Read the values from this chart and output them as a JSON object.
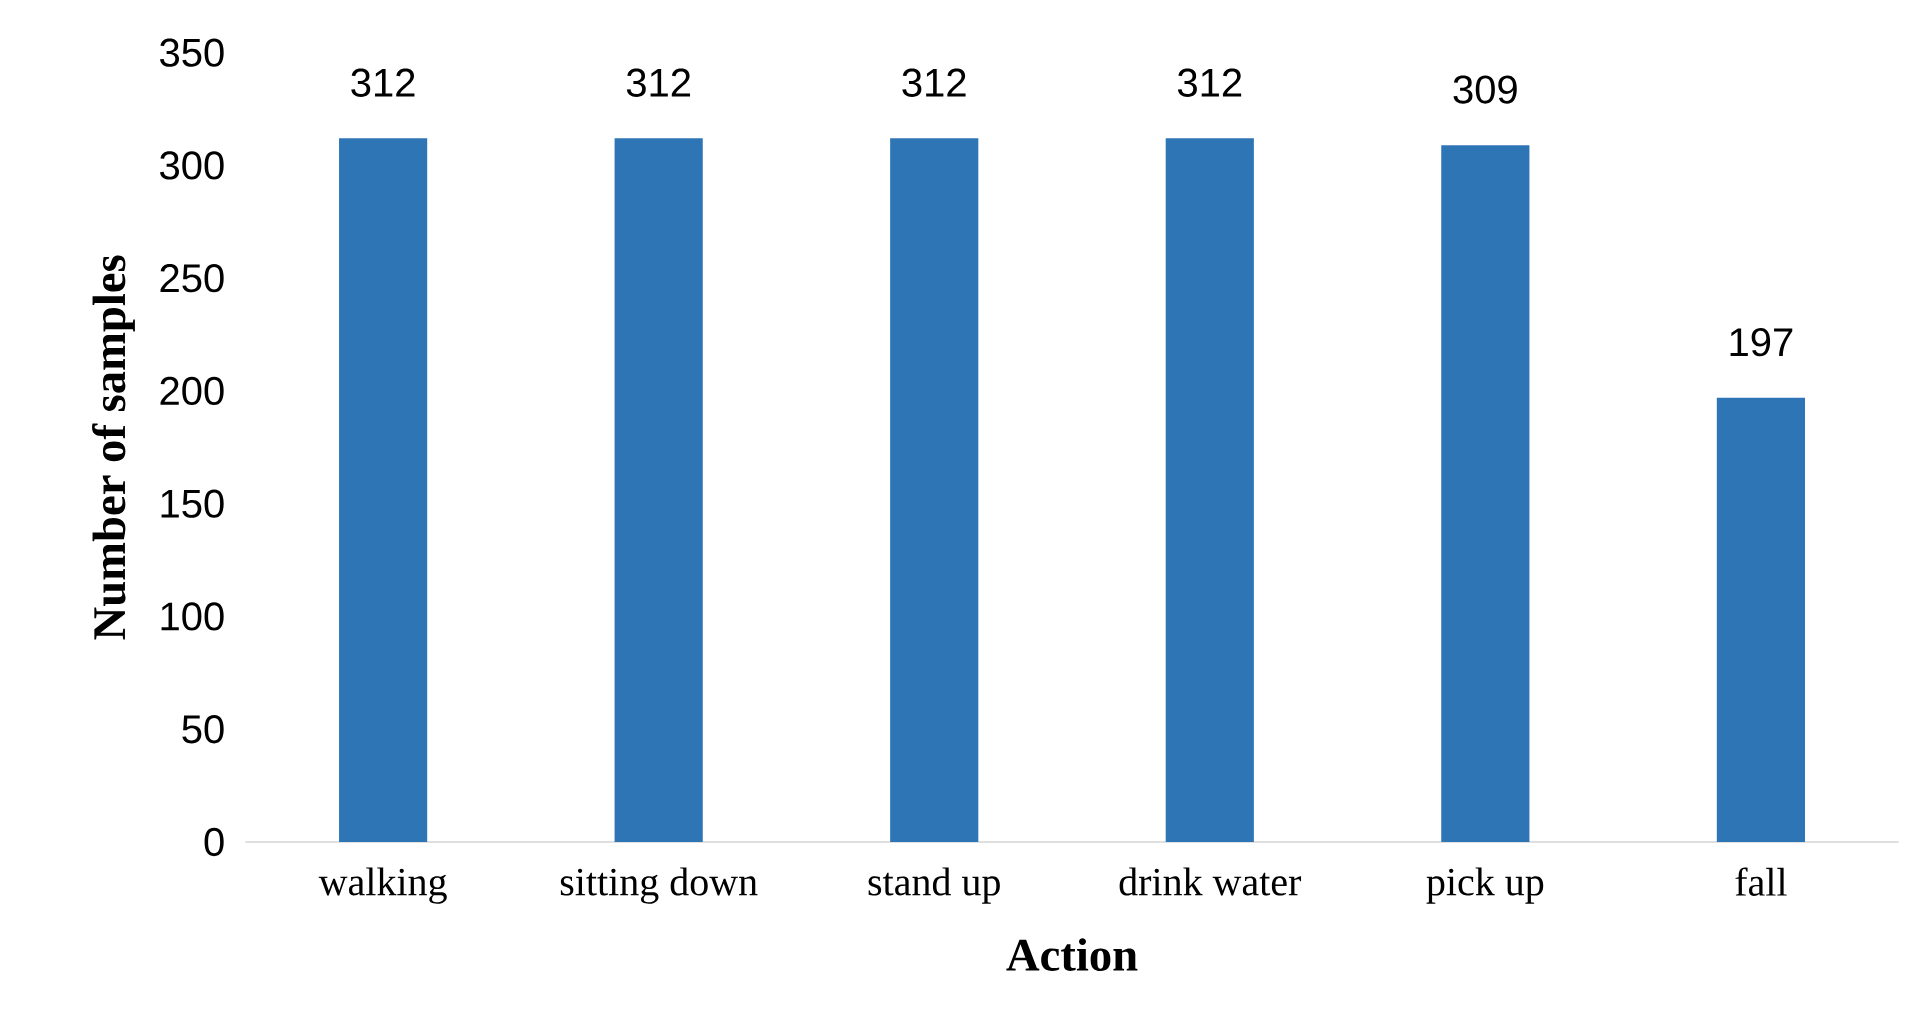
{
  "chart_data": {
    "type": "bar",
    "xlabel": "Action",
    "ylabel": "Number of samples",
    "categories": [
      "walking",
      "sitting down",
      "stand up",
      "drink water",
      "pick up",
      "fall"
    ],
    "values": [
      312,
      312,
      312,
      312,
      309,
      197
    ],
    "color": "#2e75b6",
    "ylim": [
      0,
      350
    ],
    "yticks": [
      0,
      50,
      100,
      150,
      200,
      250,
      300,
      350
    ],
    "data_labels": true,
    "grid": false
  }
}
